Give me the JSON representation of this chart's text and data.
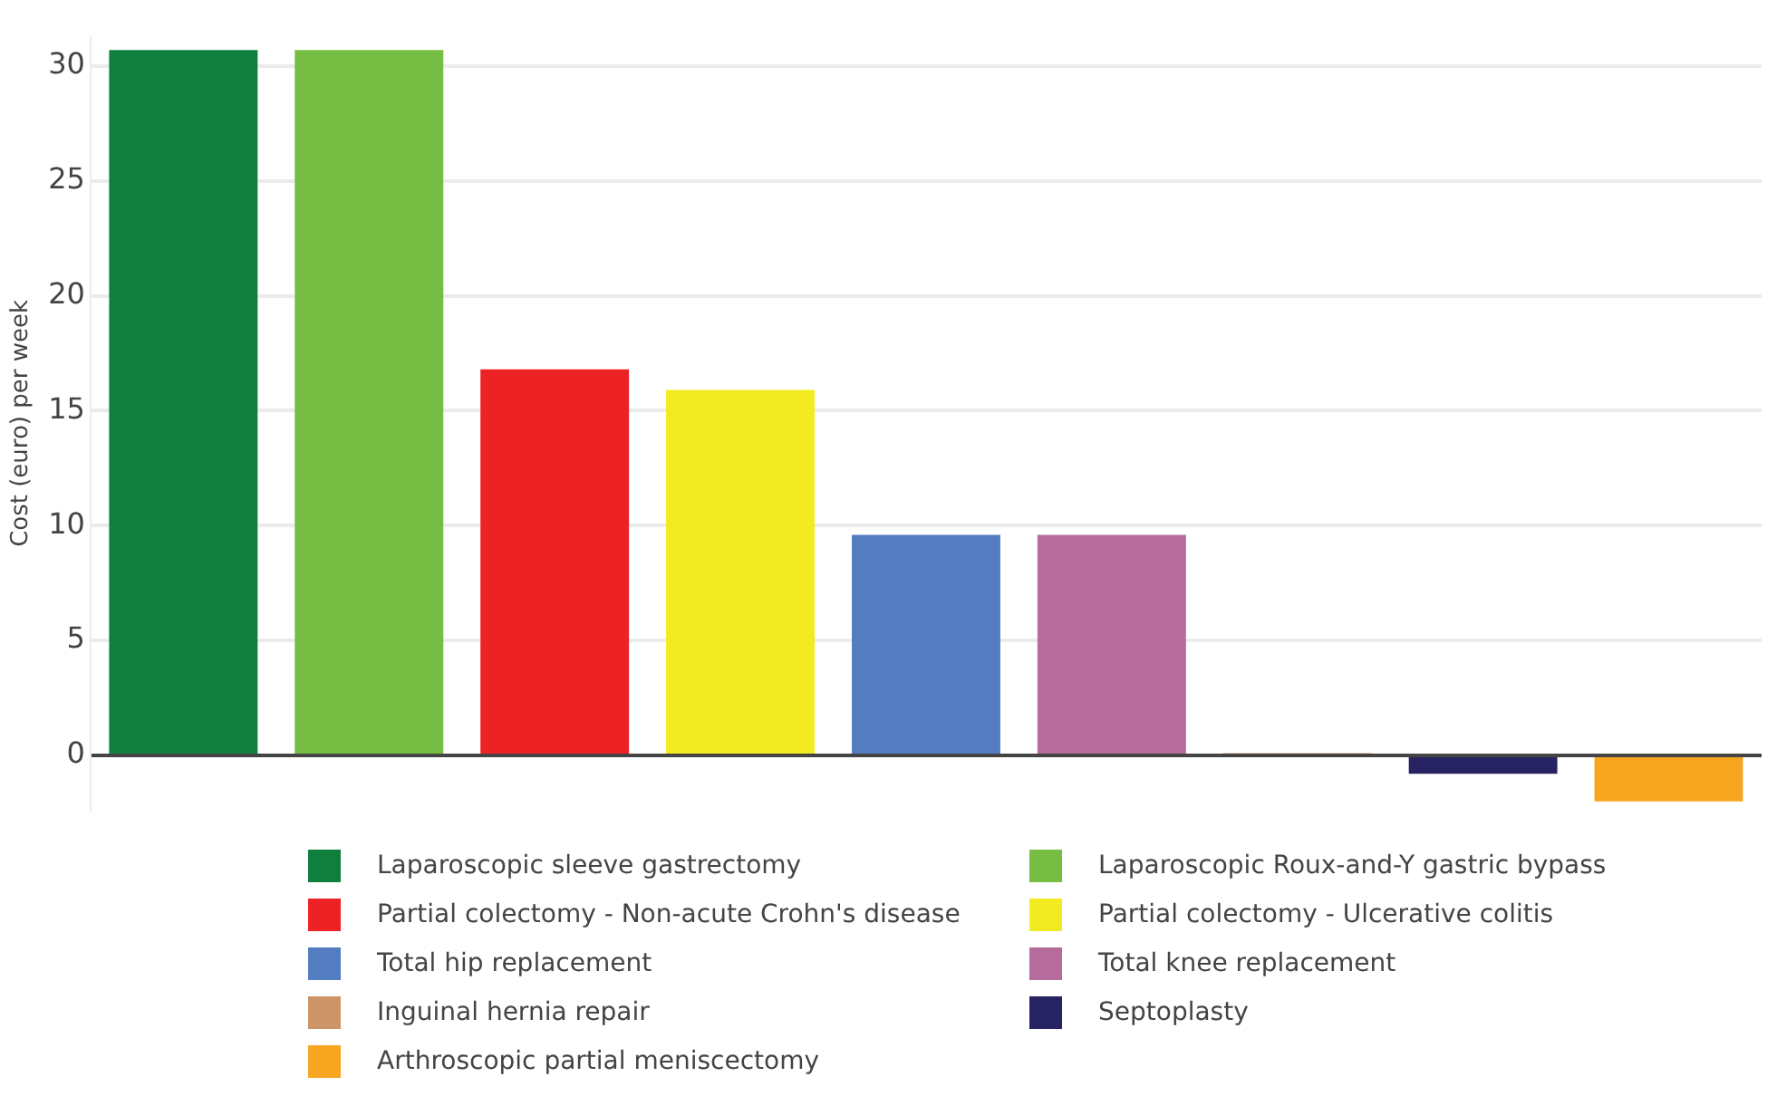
{
  "chart_data": {
    "type": "bar",
    "ylabel": "Cost (euro) per week",
    "categories": [
      null,
      null,
      null,
      null,
      null,
      null,
      null,
      null,
      null
    ],
    "series": [
      {
        "name": "Laparoscopic sleeve gastrectomy",
        "color": "#107f3e",
        "values": [
          30.7,
          null,
          null,
          null,
          null,
          null,
          null,
          null,
          null
        ]
      },
      {
        "name": "Laparoscopic Roux-and-Y gastric bypass",
        "color": "#76bd43",
        "values": [
          null,
          30.7,
          null,
          null,
          null,
          null,
          null,
          null,
          null
        ]
      },
      {
        "name": "Partial colectomy - Non-acute Crohn's disease",
        "color": "#ed2224",
        "values": [
          null,
          null,
          16.8,
          null,
          null,
          null,
          null,
          null,
          null
        ]
      },
      {
        "name": "Partial colectomy - Ulcerative colitis",
        "color": "#f3eb22",
        "values": [
          null,
          null,
          null,
          15.9,
          null,
          null,
          null,
          null,
          null
        ]
      },
      {
        "name": "Total hip replacement",
        "color": "#537cc1",
        "values": [
          null,
          null,
          null,
          null,
          9.6,
          null,
          null,
          null,
          null
        ]
      },
      {
        "name": "Total knee replacement",
        "color": "#b56c9c",
        "values": [
          null,
          null,
          null,
          null,
          null,
          9.6,
          null,
          null,
          null
        ]
      },
      {
        "name": "Inguinal hernia repair",
        "color": "#cd9467",
        "values": [
          null,
          null,
          null,
          null,
          null,
          null,
          0.1,
          null,
          null
        ]
      },
      {
        "name": "Septoplasty",
        "color": "#272262",
        "values": [
          null,
          null,
          null,
          null,
          null,
          null,
          null,
          -0.8,
          null
        ]
      },
      {
        "name": "Arthroscopic partial meniscectomy",
        "color": "#f8a51f",
        "values": [
          null,
          null,
          null,
          null,
          null,
          null,
          null,
          null,
          -2.0
        ]
      }
    ],
    "ylim": [
      -2.4,
      31.3
    ],
    "yticks": [
      0,
      5,
      10,
      15,
      20,
      25,
      30
    ],
    "grid": "y",
    "legend": "bottom"
  }
}
